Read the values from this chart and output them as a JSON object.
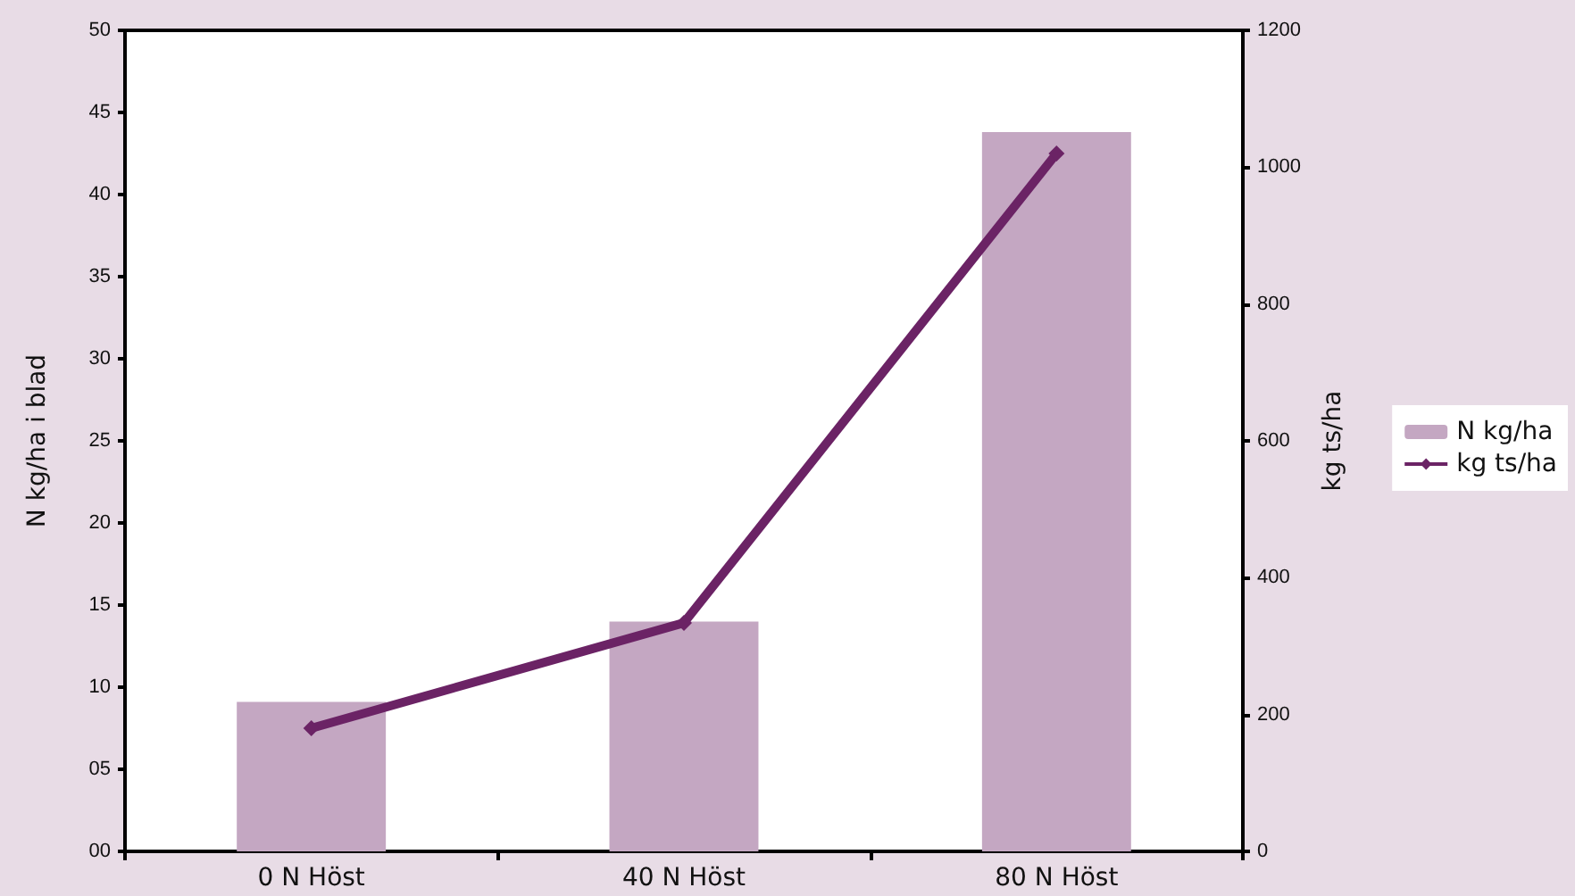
{
  "chart_data": {
    "type": "bar",
    "ylabel": "N kg/ha i blad",
    "y2label": "kg ts/ha",
    "categories": [
      "0 N Höst",
      "40 N Höst",
      "80 N Höst"
    ],
    "series": [
      {
        "name": "N kg/ha",
        "color": "#c4a7c2",
        "values": [
          9.1,
          14.0,
          43.8
        ]
      },
      {
        "name": "kg ts/ha",
        "type": "line",
        "axis": "y2",
        "color": "#6b2365",
        "marker": "diamond",
        "values": [
          180,
          334,
          1020
        ]
      }
    ],
    "ylim": [
      0,
      50
    ],
    "yticks": [
      {
        "value": 0,
        "label": "00"
      },
      {
        "value": 5,
        "label": "05"
      },
      10,
      15,
      20,
      25,
      30,
      35,
      40,
      45,
      50
    ],
    "y2lim": [
      0,
      1200
    ],
    "y2ticks": [
      0,
      200,
      400,
      600,
      800,
      1000,
      1200
    ],
    "legend": "right",
    "grid": false
  }
}
